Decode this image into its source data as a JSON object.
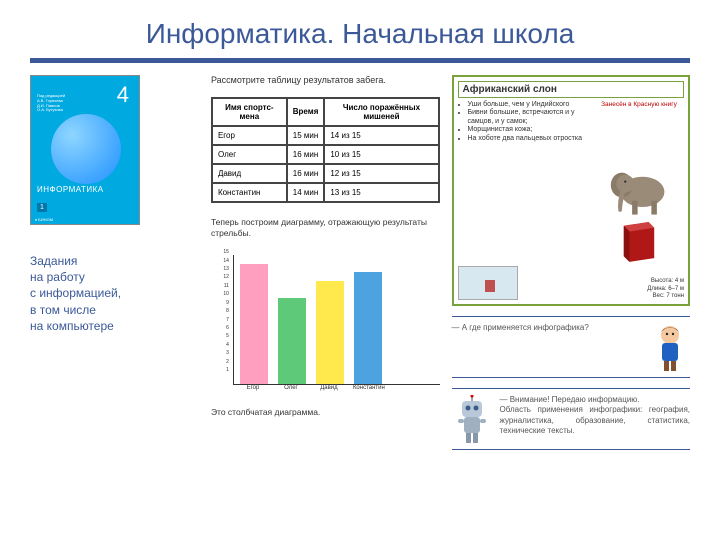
{
  "title": "Информатика. Начальная школа",
  "book": {
    "grade": "4",
    "subject": "ИНФОРМАТИКА",
    "part": "1",
    "authors": "Под редакцией\nА.В. Горячева\nД.И. Павлов\nО.А. Бутузова"
  },
  "description": "Задания\nна работу\nс информацией,\nв том числе\nна компьютере",
  "instruction1": "Рассмотрите таблицу результатов забега.",
  "table": {
    "headers": [
      "Имя спортс-мена",
      "Время",
      "Число поражённых мишеней"
    ],
    "rows": [
      [
        "Егор",
        "15 мин",
        "14 из 15"
      ],
      [
        "Олег",
        "16 мин",
        "10 из 15"
      ],
      [
        "Давид",
        "16 мин",
        "12 из 15"
      ],
      [
        "Константин",
        "14 мин",
        "13 из 15"
      ]
    ]
  },
  "instruction2": "Теперь построим диаграмму, отражающую результаты стрельбы.",
  "chart": {
    "type": "bar",
    "ylim": [
      0,
      15
    ],
    "yticks": [
      1,
      2,
      3,
      4,
      5,
      6,
      7,
      8,
      9,
      10,
      11,
      12,
      13,
      14,
      15
    ],
    "categories": [
      "Егор",
      "Олег",
      "Давид",
      "Константин"
    ],
    "values": [
      14,
      10,
      12,
      13
    ],
    "colors": [
      "#ff9fbf",
      "#5fc97a",
      "#ffe94d",
      "#4da3e0"
    ],
    "caption": "Это столбчатая диаграмма."
  },
  "elephant": {
    "title": "Африканский слон",
    "redbook": "Занесён в Красную книгу",
    "bullets": [
      "Уши больше, чем у Индийского",
      "Бивни большие, встречаются и у самцов, и у самок;",
      "Морщинистая кожа;",
      "На хоботе два пальцевых отростка"
    ],
    "stats": "Высота: 4 м\nДлина: 6–7 м\nВес: 7 тонн"
  },
  "dialog1": "— А где применяется инфографика?",
  "dialog2": "— Внимание! Передаю информацию.\nОбласть применения инфографики: география, журналистика, образование, статистика, технические тексты.",
  "colors": {
    "accent": "#3b5998",
    "green": "#7aa23c"
  }
}
